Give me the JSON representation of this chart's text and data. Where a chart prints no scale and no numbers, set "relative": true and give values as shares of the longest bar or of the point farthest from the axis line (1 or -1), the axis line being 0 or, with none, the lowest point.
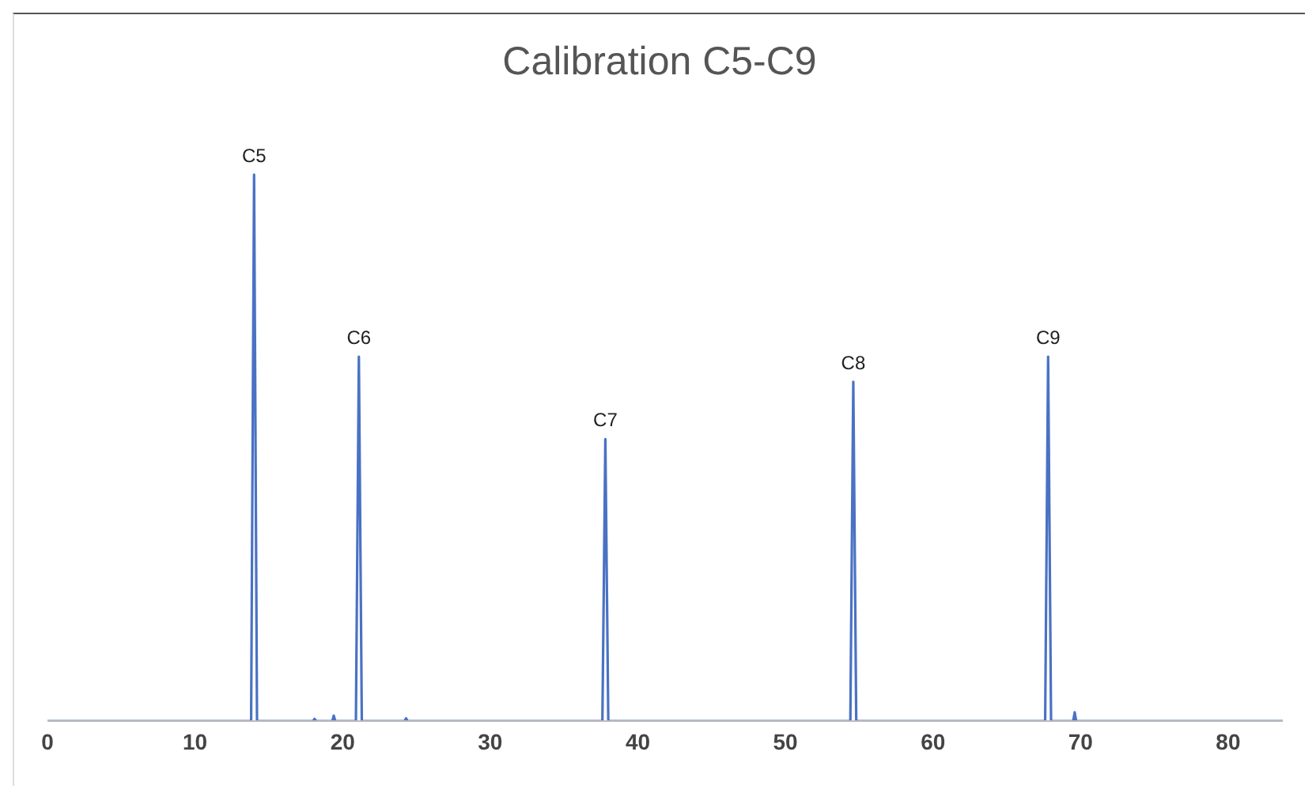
{
  "chart_data": {
    "type": "line",
    "title": "Calibration C5-C9",
    "relative": true,
    "xlim": [
      0,
      83.7
    ],
    "xticks": [
      0,
      10,
      20,
      30,
      40,
      50,
      60,
      70,
      80
    ],
    "grid": false,
    "legend": false,
    "marker": "none",
    "line_style": "solid",
    "series": [
      {
        "color": "#4a72c4",
        "x": [
          0,
          13.8,
          14.0,
          14.2,
          18.0,
          18.1,
          18.2,
          19.3,
          19.4,
          19.5,
          20.9,
          21.1,
          21.3,
          24.2,
          24.3,
          24.4,
          37.6,
          37.8,
          38.0,
          54.4,
          54.6,
          54.8,
          67.6,
          67.8,
          68.0,
          69.5,
          69.6,
          69.7,
          83.7
        ],
        "values": [
          0,
          0,
          1,
          0,
          0,
          0.004,
          0,
          0,
          0.01,
          0,
          0,
          0.667,
          0,
          0,
          0.005,
          0,
          0,
          0.516,
          0,
          0,
          0.621,
          0,
          0,
          0.667,
          0,
          0,
          0.016,
          0,
          0
        ]
      }
    ],
    "annotations": [
      {
        "text": "C5",
        "x": 14.0,
        "y": 1
      },
      {
        "text": "C6",
        "x": 21.1,
        "y": 0.667
      },
      {
        "text": "C7",
        "x": 37.8,
        "y": 0.516
      },
      {
        "text": "C8",
        "x": 54.6,
        "y": 0.621
      },
      {
        "text": "C9",
        "x": 67.8,
        "y": 0.667
      }
    ]
  }
}
